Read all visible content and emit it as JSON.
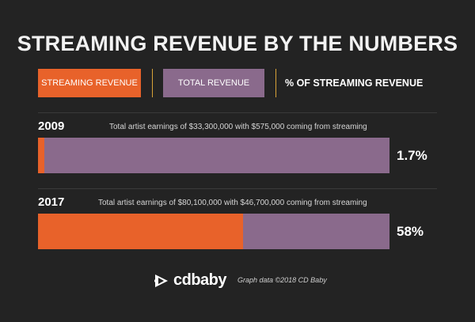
{
  "colors": {
    "background": "#232323",
    "streaming": "#e8622a",
    "total": "#8a6a8c",
    "separator": "#d8a238"
  },
  "legend": {
    "streaming_label": "STREAMING REVENUE",
    "total_label": "TOTAL REVENUE",
    "percent_label": "% OF STREAMING REVENUE"
  },
  "footer": {
    "logo_text": "cdbaby",
    "logo_icon": "cdbaby-logo-icon",
    "credit": "Graph data ©2018 CD Baby"
  },
  "chart_data": {
    "type": "bar",
    "orientation": "horizontal",
    "stacked": true,
    "title": "STREAMING REVENUE BY THE NUMBERS",
    "categories": [
      "2009",
      "2017"
    ],
    "series": [
      {
        "name": "STREAMING REVENUE",
        "values": [
          575000,
          46700000
        ]
      },
      {
        "name": "TOTAL REVENUE",
        "values": [
          33300000,
          80100000
        ]
      }
    ],
    "percent_labels": [
      "1.7%",
      "58%"
    ],
    "percent_values": [
      1.7,
      58
    ],
    "annotations": [
      "Total artist earnings of $33,300,000 with $575,000 coming from streaming",
      "Total artist earnings of $80,100,000 with $46,700,000 coming from streaming"
    ],
    "legend_position": "top",
    "grid": false
  }
}
